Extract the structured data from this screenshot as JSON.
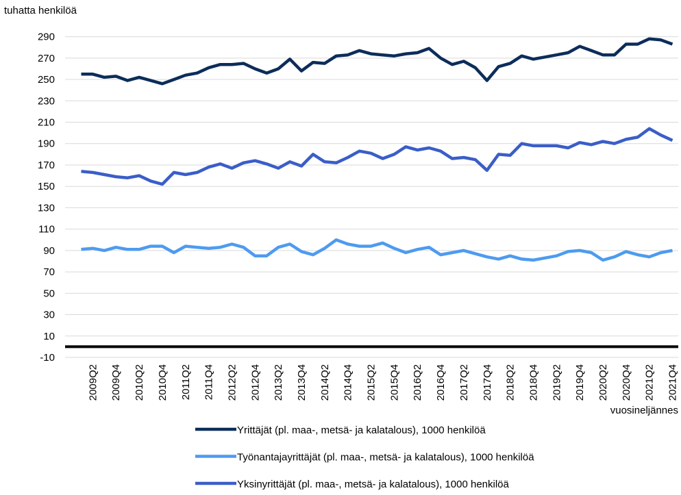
{
  "chart_data": {
    "type": "line",
    "y_axis_label": "tuhatta henkilöä",
    "x_axis_label": "vuosineljännes",
    "categories": [
      null,
      "2009Q2",
      null,
      "2009Q4",
      null,
      "2010Q2",
      null,
      "2010Q4",
      null,
      "2011Q2",
      null,
      "2011Q4",
      null,
      "2012Q2",
      null,
      "2012Q4",
      null,
      "2013Q2",
      null,
      "2013Q4",
      null,
      "2014Q2",
      null,
      "2014Q4",
      null,
      "2015Q2",
      null,
      "2015Q4",
      null,
      "2016Q2",
      null,
      "2016Q4",
      null,
      "2017Q2",
      null,
      "2017Q4",
      null,
      "2018Q2",
      null,
      "2018Q4",
      null,
      "2019Q2",
      null,
      "2019Q4",
      null,
      "2020Q2",
      null,
      "2020Q4",
      null,
      "2021Q2",
      null,
      "2021Q4"
    ],
    "series": [
      {
        "name": "Yrittäjät (pl. maa-, metsä- ja kalatalous), 1000 henkilöä",
        "color": "#0c2d5a",
        "values": [
          255,
          255,
          252,
          253,
          249,
          252,
          249,
          246,
          250,
          254,
          256,
          261,
          264,
          264,
          265,
          260,
          256,
          260,
          269,
          258,
          266,
          265,
          272,
          273,
          277,
          274,
          273,
          272,
          274,
          275,
          279,
          270,
          264,
          267,
          261,
          249,
          262,
          265,
          272,
          269,
          271,
          273,
          275,
          281,
          277,
          273,
          273,
          283,
          283,
          288,
          287,
          283
        ]
      },
      {
        "name": "Työnantajayrittäjät (pl. maa-, metsä- ja kalatalous), 1000 henkilöä",
        "color": "#4d9bf0",
        "values": [
          91,
          92,
          90,
          93,
          91,
          91,
          94,
          94,
          88,
          94,
          93,
          92,
          93,
          96,
          93,
          85,
          85,
          93,
          96,
          89,
          86,
          92,
          100,
          96,
          94,
          94,
          97,
          92,
          88,
          91,
          93,
          86,
          88,
          90,
          87,
          84,
          82,
          85,
          82,
          81,
          83,
          85,
          89,
          90,
          88,
          81,
          84,
          89,
          86,
          84,
          88,
          90
        ]
      },
      {
        "name": "Yksinyrittäjät (pl. maa-, metsä- ja kalatalous), 1000 henkilöä",
        "color": "#3a5ec8",
        "values": [
          164,
          163,
          161,
          159,
          158,
          160,
          155,
          152,
          163,
          161,
          163,
          168,
          171,
          167,
          172,
          174,
          171,
          167,
          173,
          169,
          180,
          173,
          172,
          177,
          183,
          181,
          176,
          180,
          187,
          184,
          186,
          183,
          176,
          177,
          175,
          165,
          180,
          179,
          190,
          188,
          188,
          188,
          186,
          191,
          189,
          192,
          190,
          194,
          196,
          204,
          198,
          193
        ]
      }
    ],
    "ylim": [
      -10,
      300
    ],
    "yticks": [
      -10,
      10,
      30,
      50,
      70,
      90,
      110,
      130,
      150,
      170,
      190,
      210,
      230,
      250,
      270,
      290
    ],
    "grid": true
  }
}
